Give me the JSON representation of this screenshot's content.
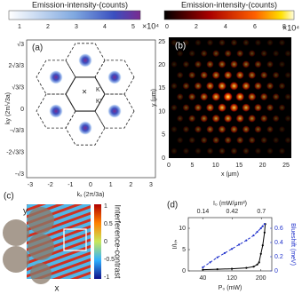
{
  "panels": {
    "a": {
      "label": "(a)",
      "colorbar_title": "Emission-intensity-(counts)",
      "colorbar_ticks": [
        "1",
        "2",
        "3",
        "4",
        "5"
      ],
      "colorbar_scale": "×10⁴",
      "x_label": "kₓ (2π/3a)",
      "y_label": "ky (2π/√3a)",
      "x_ticks": [
        "-3",
        "-2",
        "-1",
        "0",
        "1",
        "2",
        "3"
      ],
      "y_ticks": [
        "√3",
        "2√3/3",
        "√3/3",
        "0",
        "-√3/3",
        "-2√3/3",
        "-√3"
      ],
      "center_mark": "×",
      "k_label": "K",
      "k_prime_label": "K'"
    },
    "b": {
      "label": "(b)",
      "colorbar_title": "Emission-intensity-(counts)",
      "colorbar_ticks": [
        "0",
        "2",
        "4",
        "6",
        "8"
      ],
      "colorbar_scale": "×10⁴",
      "x_label": "x (μm)",
      "y_label": "y (μm)",
      "x_ticks": [
        "0",
        "5",
        "10",
        "15",
        "20",
        "25"
      ],
      "y_ticks": [
        "25",
        "20",
        "15",
        "10",
        "5",
        "0"
      ]
    },
    "c": {
      "label": "(c)",
      "colorbar_label": "Interference-contrast",
      "colorbar_ticks": [
        "1",
        "0.5",
        "0",
        "-0.5",
        "-1"
      ],
      "x_label": "x",
      "y_label": "y"
    }
  },
  "chart_data": {
    "type": "line",
    "label": "(d)",
    "x_label": "P₀ (mW)",
    "x2_label": "I₀ (mW/μm²)",
    "y_label": "I/Iₜₕ",
    "y2_label": "Blueshift (meV)",
    "xlim": [
      0,
      230
    ],
    "xticks": [
      40,
      120,
      200
    ],
    "x2lim": [
      0,
      0.8
    ],
    "x2ticks": [
      0.14,
      0.42,
      0.7
    ],
    "ylim": [
      0,
      12.5
    ],
    "yticks": [
      0,
      5,
      10
    ],
    "y2lim": [
      0,
      0.75
    ],
    "y2ticks": [
      0,
      0.2,
      0.4,
      0.6
    ],
    "series": [
      {
        "color": "#000000",
        "x": [
          40,
          80,
          120,
          160,
          180,
          190,
          195,
          200,
          205,
          210,
          212
        ],
        "values": [
          0.3,
          0.4,
          0.5,
          0.7,
          1,
          1.5,
          2,
          4,
          6,
          9,
          11
        ]
      },
      {
        "color": "#2233cc",
        "axis": "y2",
        "dashed": true,
        "x": [
          40,
          60,
          80,
          100,
          120,
          140,
          160,
          180,
          190,
          200,
          205,
          210
        ],
        "values": [
          0.05,
          0.12,
          0.19,
          0.25,
          0.31,
          0.37,
          0.43,
          0.5,
          0.55,
          0.6,
          0.63,
          0.66
        ]
      }
    ]
  }
}
